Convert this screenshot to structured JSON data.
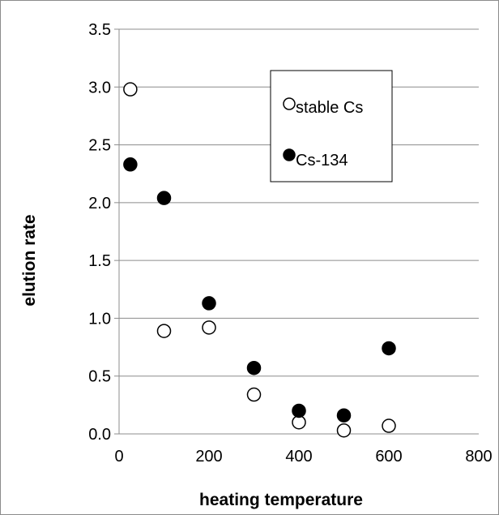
{
  "chart_data": {
    "type": "scatter",
    "xlabel": "heating temperature",
    "ylabel": "elution rate",
    "xlim": [
      0,
      800
    ],
    "ylim": [
      0,
      3.5
    ],
    "x_ticks": [
      "0",
      "200",
      "400",
      "600",
      "800"
    ],
    "y_ticks": [
      "0.0",
      "0.5",
      "1.0",
      "1.5",
      "2.0",
      "2.5",
      "3.0",
      "3.5"
    ],
    "grid": "horizontal",
    "legend_position": "top-right",
    "series": [
      {
        "name": "stable Cs",
        "marker": "open-circle",
        "color": "#000000",
        "points": [
          {
            "x": 25,
            "y": 2.98
          },
          {
            "x": 100,
            "y": 0.89
          },
          {
            "x": 200,
            "y": 0.92
          },
          {
            "x": 300,
            "y": 0.34
          },
          {
            "x": 400,
            "y": 0.1
          },
          {
            "x": 500,
            "y": 0.03
          },
          {
            "x": 600,
            "y": 0.07
          }
        ]
      },
      {
        "name": "Cs-134",
        "marker": "filled-circle",
        "color": "#000000",
        "points": [
          {
            "x": 25,
            "y": 2.33
          },
          {
            "x": 100,
            "y": 2.04
          },
          {
            "x": 200,
            "y": 1.13
          },
          {
            "x": 300,
            "y": 0.57
          },
          {
            "x": 400,
            "y": 0.2
          },
          {
            "x": 500,
            "y": 0.16
          },
          {
            "x": 600,
            "y": 0.74
          }
        ]
      }
    ]
  }
}
